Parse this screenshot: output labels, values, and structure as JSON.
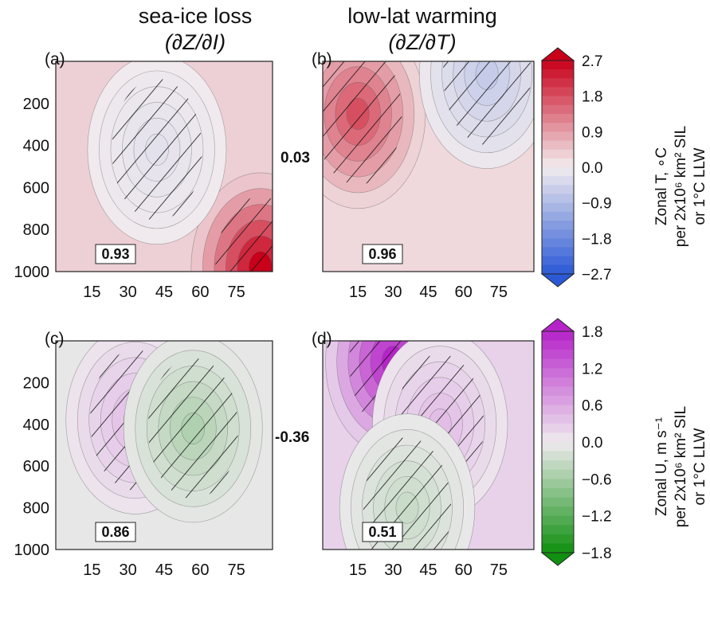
{
  "column_titles": [
    {
      "line1": "sea-ice loss",
      "line2": "(∂Z/∂I)"
    },
    {
      "line1": "low-lat warming",
      "line2": "(∂Z/∂T)"
    }
  ],
  "correlations_between": {
    "top": "0.03",
    "bottom": "-0.36"
  },
  "colorbars": {
    "top": {
      "label_lines": [
        "Zonal T, ∘C",
        "per 2x10⁶ km² SIL",
        "or 1°C LLW"
      ],
      "ticks": [
        "2.7",
        "1.8",
        "0.9",
        "0.0",
        "−0.9",
        "−1.8",
        "−2.7"
      ],
      "range": [
        -2.7,
        2.7
      ],
      "colors": {
        "high": "#c8001a",
        "mid": "#f2ecee",
        "low": "#2b59d6"
      }
    },
    "bottom": {
      "label_lines": [
        "Zonal U, m s⁻¹",
        "per 2x10⁶ km² SIL",
        "or 1°C LLW"
      ],
      "ticks": [
        "1.8",
        "1.2",
        "0.6",
        "0.0",
        "−0.6",
        "−1.2",
        "−1.8"
      ],
      "range": [
        -1.8,
        1.8
      ],
      "colors": {
        "high": "#b623c9",
        "mid": "#eeeaee",
        "low": "#109010"
      }
    }
  },
  "chart_data": [
    {
      "type": "heatmap",
      "panel": "(a)",
      "variable": "Zonal T",
      "xlabel": "",
      "ylabel": "",
      "xticks": [
        "15",
        "30",
        "45",
        "60",
        "75"
      ],
      "yticks": [
        "200",
        "400",
        "600",
        "800",
        "1000"
      ],
      "xlim": [
        0,
        90
      ],
      "ylim": [
        1000,
        0
      ],
      "pattern_r": "0.93",
      "features": [
        {
          "kind": "warm",
          "x": 85,
          "y": 980,
          "value": 2.7
        },
        {
          "kind": "cool",
          "x": 42,
          "y": 420,
          "value": -0.2
        }
      ]
    },
    {
      "type": "heatmap",
      "panel": "(b)",
      "variable": "Zonal T",
      "xlabel": "",
      "ylabel": "",
      "xticks": [
        "15",
        "30",
        "45",
        "60",
        "75"
      ],
      "yticks": [
        "200",
        "400",
        "600",
        "800",
        "1000"
      ],
      "xlim": [
        0,
        90
      ],
      "ylim": [
        1000,
        0
      ],
      "pattern_r": "0.96",
      "features": [
        {
          "kind": "warm",
          "x": 15,
          "y": 250,
          "value": 1.8
        },
        {
          "kind": "cool",
          "x": 70,
          "y": 60,
          "value": -0.6
        }
      ]
    },
    {
      "type": "heatmap",
      "panel": "(c)",
      "variable": "Zonal U",
      "xlabel": "",
      "ylabel": "",
      "xticks": [
        "15",
        "30",
        "45",
        "60",
        "75"
      ],
      "yticks": [
        "200",
        "400",
        "600",
        "800",
        "1000"
      ],
      "xlim": [
        0,
        90
      ],
      "ylim": [
        1000,
        0
      ],
      "pattern_r": "0.86",
      "features": [
        {
          "kind": "positive",
          "x": 33,
          "y": 380,
          "value": 0.4
        },
        {
          "kind": "negative",
          "x": 57,
          "y": 420,
          "value": -0.5
        }
      ]
    },
    {
      "type": "heatmap",
      "panel": "(d)",
      "variable": "Zonal U",
      "xlabel": "",
      "ylabel": "",
      "xticks": [
        "15",
        "30",
        "45",
        "60",
        "75"
      ],
      "yticks": [
        "200",
        "400",
        "600",
        "800",
        "1000"
      ],
      "xlim": [
        0,
        90
      ],
      "ylim": [
        1000,
        0
      ],
      "pattern_r": "0.51",
      "features": [
        {
          "kind": "positive",
          "x": 30,
          "y": 100,
          "value": 1.8
        },
        {
          "kind": "positive",
          "x": 50,
          "y": 400,
          "value": 0.4
        },
        {
          "kind": "negative",
          "x": 36,
          "y": 800,
          "value": -0.3
        }
      ]
    }
  ]
}
